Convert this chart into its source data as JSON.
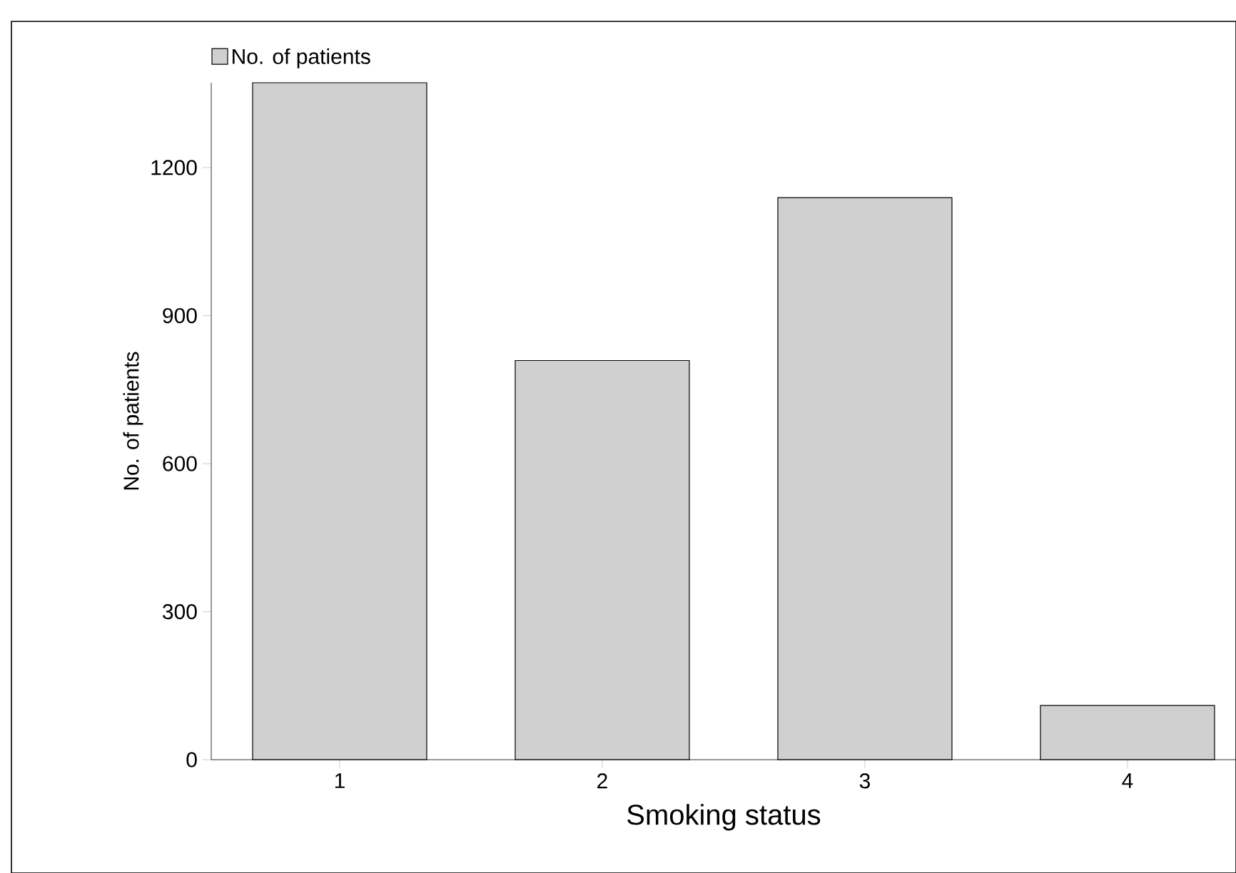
{
  "chart_data": {
    "type": "bar",
    "xlabel": "Smoking status",
    "ylabel": "No. of patients",
    "categories": [
      "1",
      "2",
      "3",
      "4"
    ],
    "series": [
      {
        "name": "No. of patients",
        "color": "#d0d0d0",
        "values": [
          1372,
          809,
          1139,
          110
        ]
      }
    ],
    "ylim": [
      0,
      1372
    ],
    "yticks": [
      0,
      300,
      600,
      900,
      1200
    ],
    "grid": false,
    "legend": "top left"
  }
}
